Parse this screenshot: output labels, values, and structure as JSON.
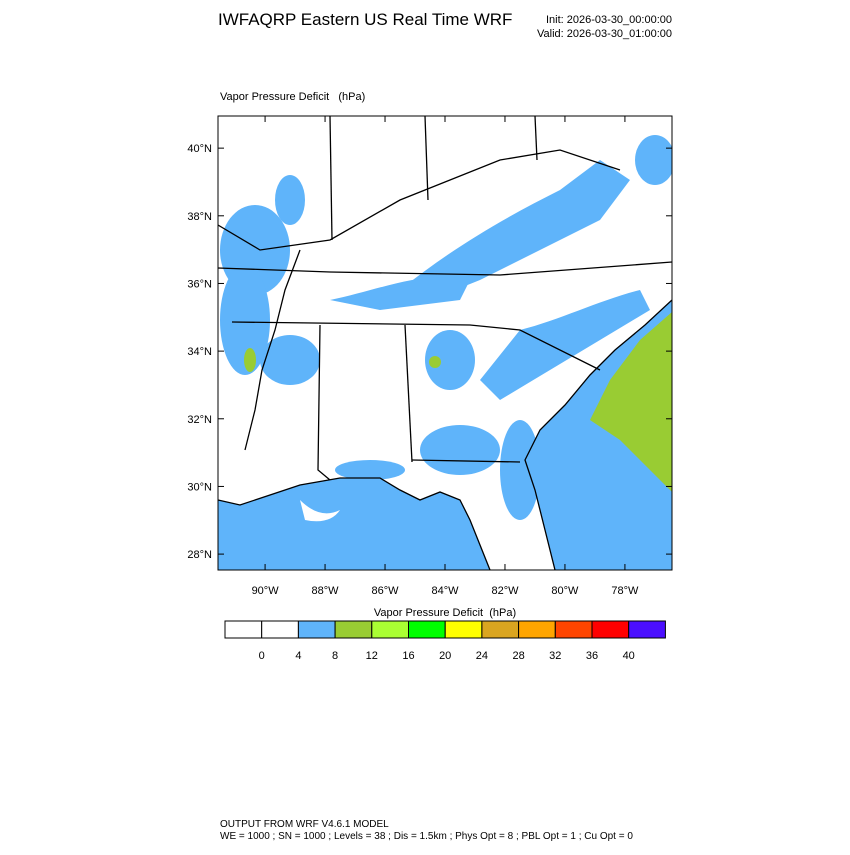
{
  "header": {
    "title": "IWFAQRP Eastern US Real Time WRF",
    "init": "Init: 2026-03-30_00:00:00",
    "valid": "Valid: 2026-03-30_01:00:00"
  },
  "map": {
    "field_label": "Vapor Pressure Deficit   (hPa)",
    "lon_range": [
      -91.57,
      -76.43
    ],
    "lat_range": [
      27.53,
      40.95
    ],
    "lat_ticks": [
      {
        "value": 40,
        "label": "40°N"
      },
      {
        "value": 38,
        "label": "38°N"
      },
      {
        "value": 36,
        "label": "36°N"
      },
      {
        "value": 34,
        "label": "34°N"
      },
      {
        "value": 32,
        "label": "32°N"
      },
      {
        "value": 30,
        "label": "30°N"
      },
      {
        "value": 28,
        "label": "28°N"
      }
    ],
    "lon_ticks": [
      {
        "value": -90,
        "label": "90°W"
      },
      {
        "value": -88,
        "label": "88°W"
      },
      {
        "value": -86,
        "label": "86°W"
      },
      {
        "value": -84,
        "label": "84°W"
      },
      {
        "value": -82,
        "label": "82°W"
      },
      {
        "value": -80,
        "label": "80°W"
      },
      {
        "value": -78,
        "label": "78°W"
      }
    ]
  },
  "colorbar": {
    "title": "Vapor Pressure Deficit  (hPa)",
    "colors": [
      "#ffffff",
      "#ffffff",
      "#5fb4fa",
      "#99cc33",
      "#aaff33",
      "#00ff00",
      "#ffff00",
      "#daa520",
      "#ffa500",
      "#ff4500",
      "#ff0000",
      "#4b0fff"
    ],
    "labels": [
      0,
      4,
      8,
      12,
      16,
      20,
      24,
      28,
      32,
      36,
      40
    ]
  },
  "footer": {
    "line1": "OUTPUT FROM WRF V4.6.1 MODEL",
    "line2": "WE = 1000 ; SN = 1000 ; Levels = 38 ; Dis = 1.5km ; Phys Opt = 8 ; PBL Opt = 1 ; Cu Opt = 0"
  }
}
